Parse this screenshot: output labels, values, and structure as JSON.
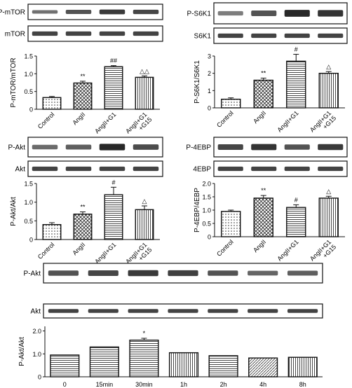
{
  "colors": {
    "bar_fill": "#ffffff",
    "bar_stroke": "#111111",
    "band": "#222222",
    "frame": "#111111"
  },
  "panels": [
    {
      "id": "mtor",
      "blot_labels": [
        "P-mTOR",
        "mTOR"
      ],
      "ylabel": "P-mTOR/mTOR",
      "yticks": [
        "0",
        "0.5",
        "1.0",
        "1.5"
      ]
    },
    {
      "id": "s6k1",
      "blot_labels": [
        "P-S6K1",
        "S6K1"
      ],
      "ylabel": "P-S6K1/S6K1",
      "yticks": [
        "0",
        "1",
        "2",
        "3"
      ]
    },
    {
      "id": "akt",
      "blot_labels": [
        "P-Akt",
        "Akt"
      ],
      "ylabel": "P-Akt/Akt",
      "yticks": [
        "0",
        "0.5",
        "1.0",
        "1.5"
      ]
    },
    {
      "id": "4ebp",
      "blot_labels": [
        "P-4EBP",
        "4EBP"
      ],
      "ylabel": "P-4EBP/4EBP",
      "yticks": [
        "0",
        "0.5",
        "1.0",
        "1.5",
        "2.0"
      ]
    },
    {
      "id": "akt_time",
      "blot_labels": [
        "P-Akt",
        "Akt"
      ],
      "ylabel": "P-Akt/Akt",
      "yticks": [
        "0",
        "1.0",
        "2.0"
      ]
    }
  ],
  "chart_data": [
    {
      "type": "bar",
      "categories": [
        "Control",
        "AngII",
        "AngII+G1",
        "AngII+G1\n+G15"
      ],
      "values": [
        0.33,
        0.74,
        1.2,
        0.9
      ],
      "errors": [
        0.03,
        0.05,
        0.03,
        0.04
      ],
      "significance": [
        "",
        "**",
        "##",
        "△△"
      ],
      "xlabel": "",
      "ylabel": "P-mTOR/mTOR",
      "ylim": [
        0,
        1.5
      ]
    },
    {
      "type": "bar",
      "categories": [
        "Control",
        "AngII",
        "AngII+G1",
        "AngII+G1\n+G15"
      ],
      "values": [
        0.5,
        1.6,
        2.7,
        2.0
      ],
      "errors": [
        0.08,
        0.12,
        0.4,
        0.1
      ],
      "significance": [
        "",
        "**",
        "#",
        "△"
      ],
      "xlabel": "",
      "ylabel": "P-S6K1/S6K1",
      "ylim": [
        0,
        3
      ]
    },
    {
      "type": "bar",
      "categories": [
        "Control",
        "AngII",
        "AngII+G1",
        "AngII+G1\n+G15"
      ],
      "values": [
        0.4,
        0.68,
        1.2,
        0.8
      ],
      "errors": [
        0.05,
        0.06,
        0.2,
        0.1
      ],
      "significance": [
        "",
        "**",
        "#",
        "△"
      ],
      "xlabel": "",
      "ylabel": "P-Akt/Akt",
      "ylim": [
        0,
        1.5
      ]
    },
    {
      "type": "bar",
      "categories": [
        "Control",
        "AngII",
        "AngII+G1",
        "AngII+G1\n+G15"
      ],
      "values": [
        0.95,
        1.45,
        1.1,
        1.45
      ],
      "errors": [
        0.05,
        0.1,
        0.1,
        0.07
      ],
      "significance": [
        "",
        "**",
        "#",
        "△"
      ],
      "xlabel": "",
      "ylabel": "P-4EBP/4EBP",
      "ylim": [
        0,
        2.0
      ]
    },
    {
      "type": "bar",
      "categories": [
        "0",
        "15min",
        "30min",
        "1h",
        "2h",
        "4h",
        "8h"
      ],
      "values": [
        0.95,
        1.3,
        1.6,
        1.05,
        0.92,
        0.82,
        0.85
      ],
      "errors": [
        0,
        0,
        0.08,
        0,
        0,
        0,
        0
      ],
      "significance": [
        "",
        "",
        "*",
        "",
        "",
        "",
        ""
      ],
      "xlabel": "",
      "ylabel": "P-Akt/Akt",
      "ylim": [
        0,
        2.2
      ]
    }
  ]
}
